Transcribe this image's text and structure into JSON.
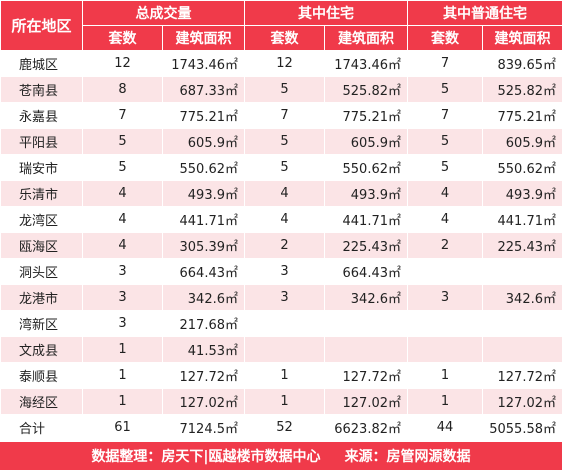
{
  "header": {
    "location": "所在地区",
    "groups": [
      "总成交量",
      "其中住宅",
      "其中普通住宅"
    ],
    "sub": [
      "套数",
      "建筑面积",
      "套数",
      "建筑面积",
      "套数",
      "建筑面积"
    ]
  },
  "rows": [
    {
      "name": "鹿城区",
      "c1": "12",
      "a1": "1743.46㎡",
      "c2": "12",
      "a2": "1743.46㎡",
      "c3": "7",
      "a3": "839.65㎡"
    },
    {
      "name": "苍南县",
      "c1": "8",
      "a1": "687.33㎡",
      "c2": "5",
      "a2": "525.82㎡",
      "c3": "5",
      "a3": "525.82㎡"
    },
    {
      "name": "永嘉县",
      "c1": "7",
      "a1": "775.21㎡",
      "c2": "7",
      "a2": "775.21㎡",
      "c3": "7",
      "a3": "775.21㎡"
    },
    {
      "name": "平阳县",
      "c1": "5",
      "a1": "605.9㎡",
      "c2": "5",
      "a2": "605.9㎡",
      "c3": "5",
      "a3": "605.9㎡"
    },
    {
      "name": "瑞安市",
      "c1": "5",
      "a1": "550.62㎡",
      "c2": "5",
      "a2": "550.62㎡",
      "c3": "5",
      "a3": "550.62㎡"
    },
    {
      "name": "乐清市",
      "c1": "4",
      "a1": "493.9㎡",
      "c2": "4",
      "a2": "493.9㎡",
      "c3": "4",
      "a3": "493.9㎡"
    },
    {
      "name": "龙湾区",
      "c1": "4",
      "a1": "441.71㎡",
      "c2": "4",
      "a2": "441.71㎡",
      "c3": "4",
      "a3": "441.71㎡"
    },
    {
      "name": "瓯海区",
      "c1": "4",
      "a1": "305.39㎡",
      "c2": "2",
      "a2": "225.43㎡",
      "c3": "2",
      "a3": "225.43㎡"
    },
    {
      "name": "洞头区",
      "c1": "3",
      "a1": "664.43㎡",
      "c2": "3",
      "a2": "664.43㎡",
      "c3": "",
      "a3": ""
    },
    {
      "name": "龙港市",
      "c1": "3",
      "a1": "342.6㎡",
      "c2": "3",
      "a2": "342.6㎡",
      "c3": "3",
      "a3": "342.6㎡"
    },
    {
      "name": "湾新区",
      "c1": "3",
      "a1": "217.68㎡",
      "c2": "",
      "a2": "",
      "c3": "",
      "a3": ""
    },
    {
      "name": "文成县",
      "c1": "1",
      "a1": "41.53㎡",
      "c2": "",
      "a2": "",
      "c3": "",
      "a3": ""
    },
    {
      "name": "泰顺县",
      "c1": "1",
      "a1": "127.72㎡",
      "c2": "1",
      "a2": "127.72㎡",
      "c3": "1",
      "a3": "127.72㎡"
    },
    {
      "name": "海经区",
      "c1": "1",
      "a1": "127.02㎡",
      "c2": "1",
      "a2": "127.02㎡",
      "c3": "1",
      "a3": "127.02㎡"
    },
    {
      "name": "合计",
      "c1": "61",
      "a1": "7124.5㎡",
      "c2": "52",
      "a2": "6623.82㎡",
      "c3": "44",
      "a3": "5055.58㎡"
    }
  ],
  "footer": {
    "left": "数据整理：房天下|瓯越楼市数据中心",
    "right": "来源：房管网源数据"
  },
  "colors": {
    "header_bg": "#f03a4a",
    "stripe": "#fbe4e6"
  }
}
